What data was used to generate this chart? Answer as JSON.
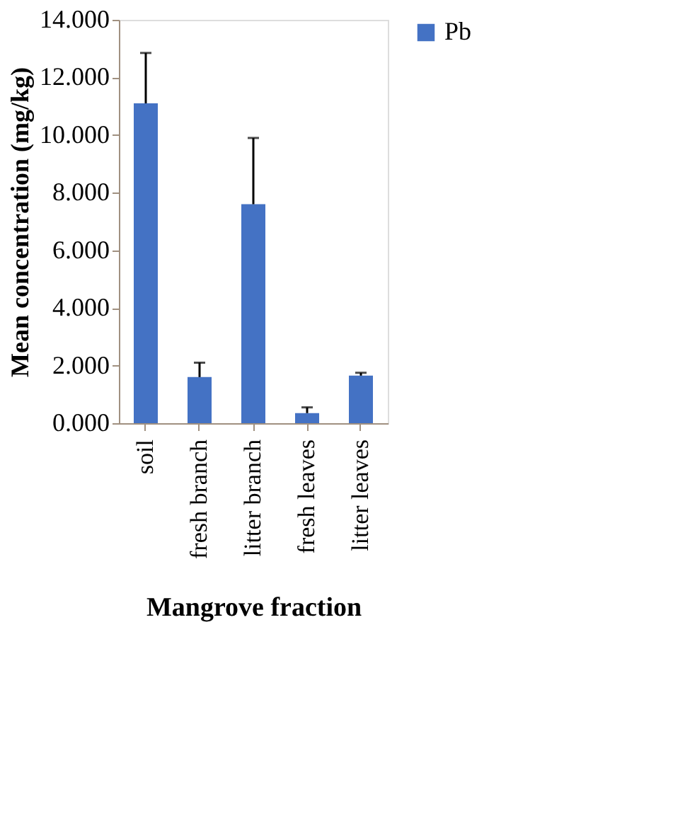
{
  "chart_data": {
    "type": "bar",
    "xlabel": "Mangrove fraction",
    "ylabel": "Mean concentration (mg/kg)",
    "categories": [
      "soil",
      "fresh branch",
      "litter branch",
      "fresh leaves",
      "litter leaves"
    ],
    "series": [
      {
        "name": "Pb",
        "color": "#4472c4",
        "values": [
          11.1,
          1.6,
          7.6,
          0.35,
          1.65
        ],
        "errors": [
          [
            11.1,
            12.85
          ],
          [
            1.6,
            2.1
          ],
          [
            7.6,
            9.9
          ],
          [
            0.35,
            0.55
          ],
          [
            1.65,
            1.75
          ]
        ]
      }
    ],
    "ylim": [
      0,
      14
    ],
    "yticks": [
      {
        "value": 0,
        "label": "0.000"
      },
      {
        "value": 2,
        "label": "2.000"
      },
      {
        "value": 4,
        "label": "4.000"
      },
      {
        "value": 6,
        "label": "6.000"
      },
      {
        "value": 8,
        "label": "8.000"
      },
      {
        "value": 10,
        "label": "10.000"
      },
      {
        "value": 12,
        "label": "12.000"
      },
      {
        "value": 14,
        "label": "14.000"
      }
    ],
    "grid": false,
    "legend": "right"
  }
}
